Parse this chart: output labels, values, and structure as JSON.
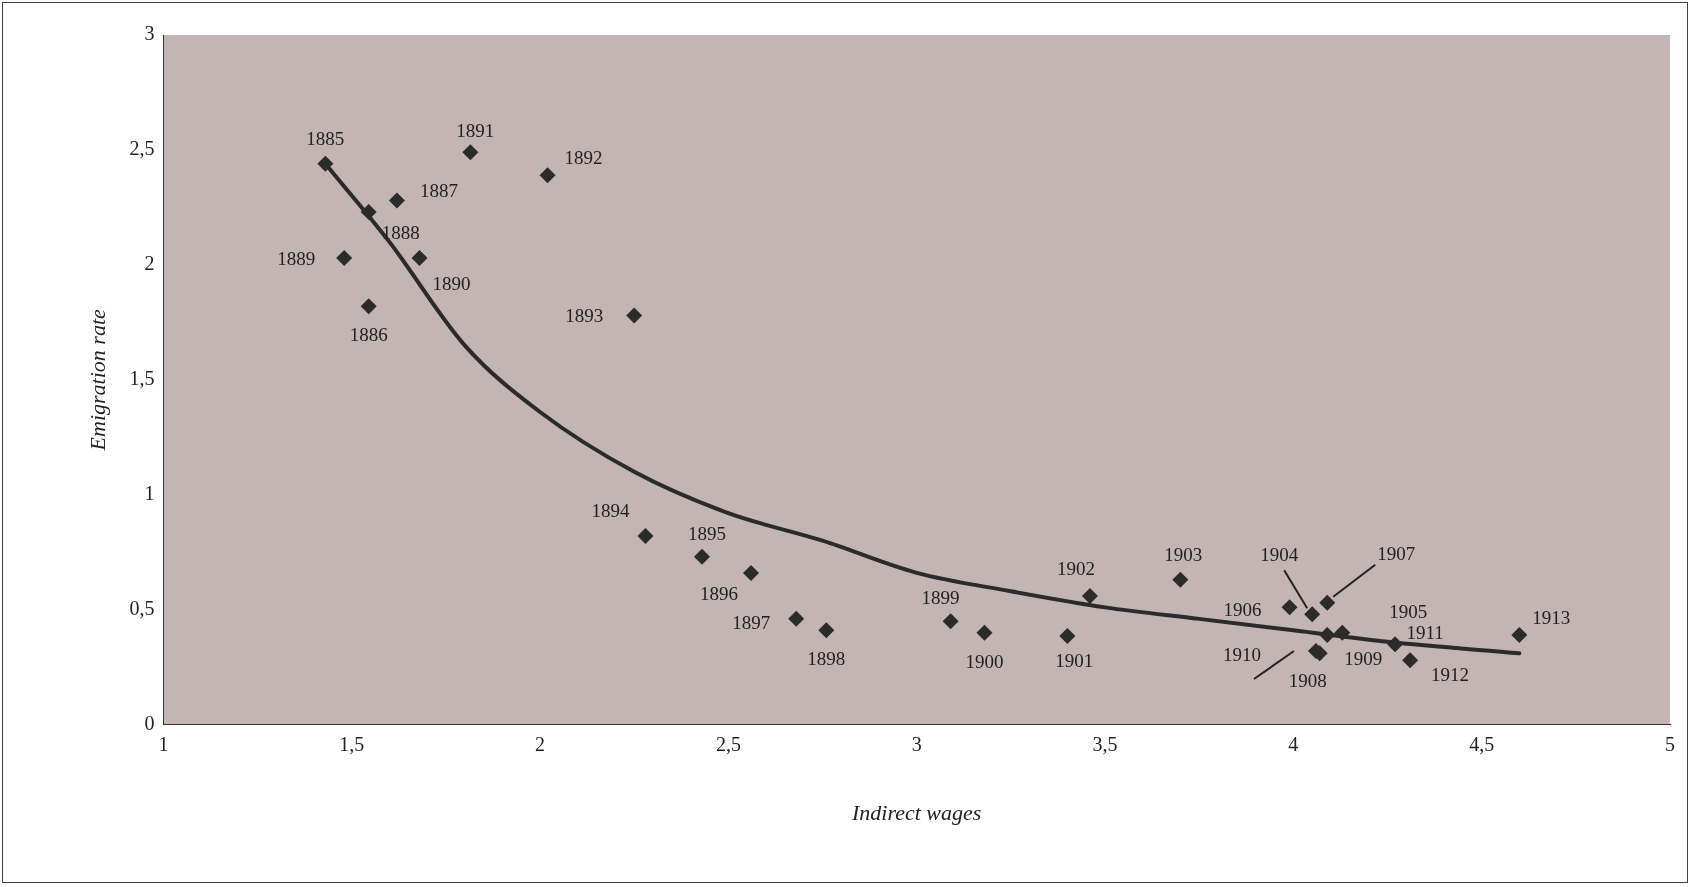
{
  "chart_data": {
    "type": "scatter",
    "xlabel": "Indirect wages",
    "ylabel": "Emigration rate",
    "xlim": [
      1,
      5
    ],
    "ylim": [
      0,
      3
    ],
    "xticks": [
      1,
      {
        "value": 1.5,
        "label": "1,5"
      },
      2,
      {
        "value": 2.5,
        "label": "2,5"
      },
      3,
      {
        "value": 3.5,
        "label": "3,5"
      },
      4,
      {
        "value": 4.5,
        "label": "4,5"
      },
      5
    ],
    "yticks": [
      0,
      {
        "value": 0.5,
        "label": "0,5"
      },
      1,
      {
        "value": 1.5,
        "label": "1,5"
      },
      2,
      {
        "value": 2.5,
        "label": "2,5"
      },
      3
    ],
    "marker": "diamond",
    "annotations": [
      {
        "text": "1885",
        "x": 1.43,
        "y": 2.44
      },
      {
        "text": "1886",
        "x": 1.545,
        "y": 1.82
      },
      {
        "text": "1887",
        "x": 1.62,
        "y": 2.28
      },
      {
        "text": "1888",
        "x": 1.545,
        "y": 2.23
      },
      {
        "text": "1889",
        "x": 1.48,
        "y": 2.03
      },
      {
        "text": "1890",
        "x": 1.68,
        "y": 2.03
      },
      {
        "text": "1891",
        "x": 1.815,
        "y": 2.49
      },
      {
        "text": "1892",
        "x": 2.02,
        "y": 2.39
      },
      {
        "text": "1893",
        "x": 2.25,
        "y": 1.78
      },
      {
        "text": "1894",
        "x": 2.28,
        "y": 0.82
      },
      {
        "text": "1895",
        "x": 2.43,
        "y": 0.73
      },
      {
        "text": "1896",
        "x": 2.56,
        "y": 0.66
      },
      {
        "text": "1897",
        "x": 2.68,
        "y": 0.46
      },
      {
        "text": "1898",
        "x": 2.76,
        "y": 0.41
      },
      {
        "text": "1899",
        "x": 3.09,
        "y": 0.45
      },
      {
        "text": "1900",
        "x": 3.18,
        "y": 0.4
      },
      {
        "text": "1901",
        "x": 3.4,
        "y": 0.385
      },
      {
        "text": "1902",
        "x": 3.46,
        "y": 0.56
      },
      {
        "text": "1903",
        "x": 3.7,
        "y": 0.63
      },
      {
        "text": "1904",
        "x": 4.05,
        "y": 0.48
      },
      {
        "text": "1905",
        "x": 4.13,
        "y": 0.4
      },
      {
        "text": "1906",
        "x": 3.99,
        "y": 0.51
      },
      {
        "text": "1907",
        "x": 4.09,
        "y": 0.53
      },
      {
        "text": "1908",
        "x": 4.07,
        "y": 0.31
      },
      {
        "text": "1909",
        "x": 4.09,
        "y": 0.39
      },
      {
        "text": "1910",
        "x": 4.06,
        "y": 0.32
      },
      {
        "text": "1911",
        "x": 4.27,
        "y": 0.35
      },
      {
        "text": "1912",
        "x": 4.31,
        "y": 0.28
      },
      {
        "text": "1913",
        "x": 4.6,
        "y": 0.39
      }
    ],
    "series": [
      {
        "color": "#2b2b2b",
        "x": [
          1.43,
          1.545,
          1.62,
          1.545,
          1.48,
          1.68,
          1.815,
          2.02,
          2.25,
          2.28,
          2.43,
          2.56,
          2.68,
          2.76,
          3.09,
          3.18,
          3.4,
          3.46,
          3.7,
          4.05,
          4.13,
          3.99,
          4.09,
          4.07,
          4.09,
          4.06,
          4.27,
          4.31,
          4.6
        ],
        "values": [
          2.44,
          1.82,
          2.28,
          2.23,
          2.03,
          2.03,
          2.49,
          2.39,
          1.78,
          0.82,
          0.73,
          0.66,
          0.46,
          0.41,
          0.45,
          0.4,
          0.385,
          0.56,
          0.63,
          0.48,
          0.4,
          0.51,
          0.53,
          0.31,
          0.39,
          0.32,
          0.35,
          0.28,
          0.39
        ]
      },
      {
        "type": "line",
        "color": "#2b2b2b",
        "marker": "none",
        "x": [
          1.43,
          1.6,
          1.8,
          2.0,
          2.25,
          2.5,
          2.75,
          3.0,
          3.25,
          3.5,
          3.75,
          4.0,
          4.25,
          4.6
        ],
        "values": [
          2.44,
          2.1,
          1.65,
          1.36,
          1.1,
          0.92,
          0.8,
          0.66,
          0.58,
          0.51,
          0.46,
          0.41,
          0.36,
          0.31
        ]
      }
    ]
  }
}
